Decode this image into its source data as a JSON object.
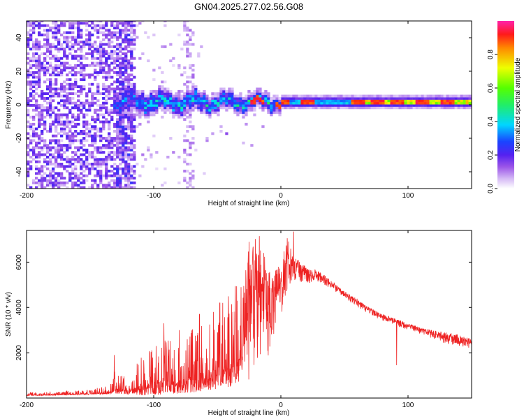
{
  "title": "GN04.2025.277.02.56.G08",
  "chart_data": [
    {
      "type": "heatmap",
      "title": "GN04.2025.277.02.56.G08",
      "xlabel": "Height of straight line (km)",
      "ylabel": "Frequency (Hz)",
      "xlim": [
        -200,
        150
      ],
      "ylim": [
        -50,
        50
      ],
      "xticks": [
        -200,
        -100,
        0,
        100
      ],
      "xtick_labels": [
        "-200",
        "-100",
        "0",
        "100"
      ],
      "yticks": [
        -40,
        -20,
        0,
        20,
        40
      ],
      "ytick_labels": [
        "-40",
        "-20",
        "0",
        "20",
        "40"
      ],
      "colorbar": {
        "label": "Normalized spectral amplitude",
        "range": [
          0,
          1
        ],
        "ticks": [
          0.0,
          0.2,
          0.4,
          0.6,
          0.8
        ],
        "tick_labels": [
          "0.0",
          "0.2",
          "0.4",
          "0.6",
          "0.8"
        ],
        "colormap": "rainbow (white → violet → blue → cyan → green → yellow → red → magenta)"
      },
      "description_of_features": {
        "broadband_noise_region_km": [
          -200,
          -115
        ],
        "coherent_band_start_km": -133,
        "band_center_hz": 1,
        "band_halfwidth_hz_near_-100km": 6,
        "band_halfwidth_hz_above_0km": 2,
        "high_amplitude_spots_km": [
          -20,
          0,
          20,
          60,
          75,
          90,
          110,
          130
        ]
      }
    },
    {
      "type": "line",
      "xlabel": "Height of straight line (km)",
      "ylabel": "SNR (10 * v/v)",
      "xlim": [
        -200,
        150
      ],
      "ylim": [
        0,
        7400
      ],
      "xticks": [
        -200,
        -100,
        0,
        100
      ],
      "xtick_labels": [
        "-200",
        "-100",
        "0",
        "100"
      ],
      "yticks": [
        2000,
        4000,
        6000
      ],
      "ytick_labels": [
        "2000",
        "4000",
        "6000"
      ],
      "series": [
        {
          "name": "SNR",
          "color": "#ee2222",
          "envelope_x_km": [
            -200,
            -150,
            -135,
            -130,
            -120,
            -110,
            -100,
            -90,
            -80,
            -70,
            -60,
            -50,
            -40,
            -30,
            -25,
            -20,
            -15,
            -10,
            -5,
            0,
            5,
            10,
            20,
            30,
            40,
            50,
            60,
            70,
            80,
            90,
            100,
            110,
            120,
            130,
            140,
            150
          ],
          "envelope_low": [
            100,
            150,
            180,
            200,
            150,
            120,
            150,
            150,
            200,
            250,
            300,
            400,
            500,
            800,
            700,
            1000,
            1200,
            1800,
            2600,
            3500,
            4500,
            5000,
            5000,
            5100,
            4800,
            4400,
            4000,
            3700,
            3400,
            3200,
            3000,
            2800,
            2600,
            2400,
            2300,
            2200
          ],
          "envelope_high": [
            250,
            350,
            600,
            1300,
            900,
            1800,
            2400,
            2800,
            2600,
            3200,
            3800,
            4200,
            4800,
            5200,
            6900,
            7100,
            6700,
            5800,
            5600,
            6000,
            7200,
            6300,
            5800,
            5600,
            5200,
            4700,
            4400,
            4000,
            3700,
            3500,
            3300,
            3100,
            3000,
            2900,
            2800,
            2600
          ],
          "spikes": [
            {
              "x": -131,
              "y": 1900
            },
            {
              "x": -92,
              "y": 3300
            },
            {
              "x": -80,
              "y": 3000
            },
            {
              "x": -64,
              "y": 3700
            },
            {
              "x": -48,
              "y": 4200
            },
            {
              "x": -25,
              "y": 6900
            },
            {
              "x": -17,
              "y": 7150
            },
            {
              "x": 10,
              "y": 7350
            },
            {
              "x": 91,
              "y": 1450
            }
          ]
        }
      ]
    }
  ]
}
